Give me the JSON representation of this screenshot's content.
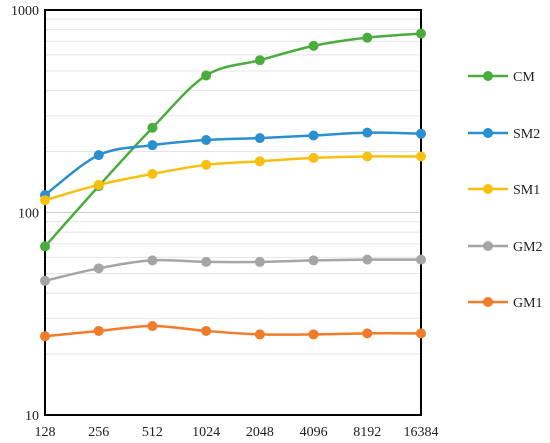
{
  "chart_data": {
    "type": "line",
    "title": "",
    "xlabel": "",
    "ylabel": "",
    "x_categories": [
      "128",
      "256",
      "512",
      "1024",
      "2048",
      "4096",
      "8192",
      "16384"
    ],
    "y_scale": "log",
    "ylim": [
      10,
      1000
    ],
    "y_tick_labels": [
      "10",
      "100",
      "1000"
    ],
    "grid": "horizontal minor log gridlines",
    "legend_position": "right",
    "series": [
      {
        "name": "CM",
        "color": "#4aac3c",
        "values": [
          68,
          135,
          262,
          475,
          565,
          665,
          730,
          765
        ]
      },
      {
        "name": "SM2",
        "color": "#2a8fcf",
        "values": [
          122,
          192,
          215,
          228,
          233,
          240,
          248,
          245
        ]
      },
      {
        "name": "SM1",
        "color": "#f7c010",
        "values": [
          115,
          137,
          155,
          172,
          179,
          186,
          189,
          189
        ]
      },
      {
        "name": "GM2",
        "color": "#a5a5a5",
        "values": [
          46,
          53,
          58,
          57,
          57,
          58,
          58.5,
          58.5
        ]
      },
      {
        "name": "GM1",
        "color": "#f07b2a",
        "values": [
          24.5,
          26,
          27.5,
          26,
          25,
          25,
          25.3,
          25.3
        ]
      }
    ]
  }
}
